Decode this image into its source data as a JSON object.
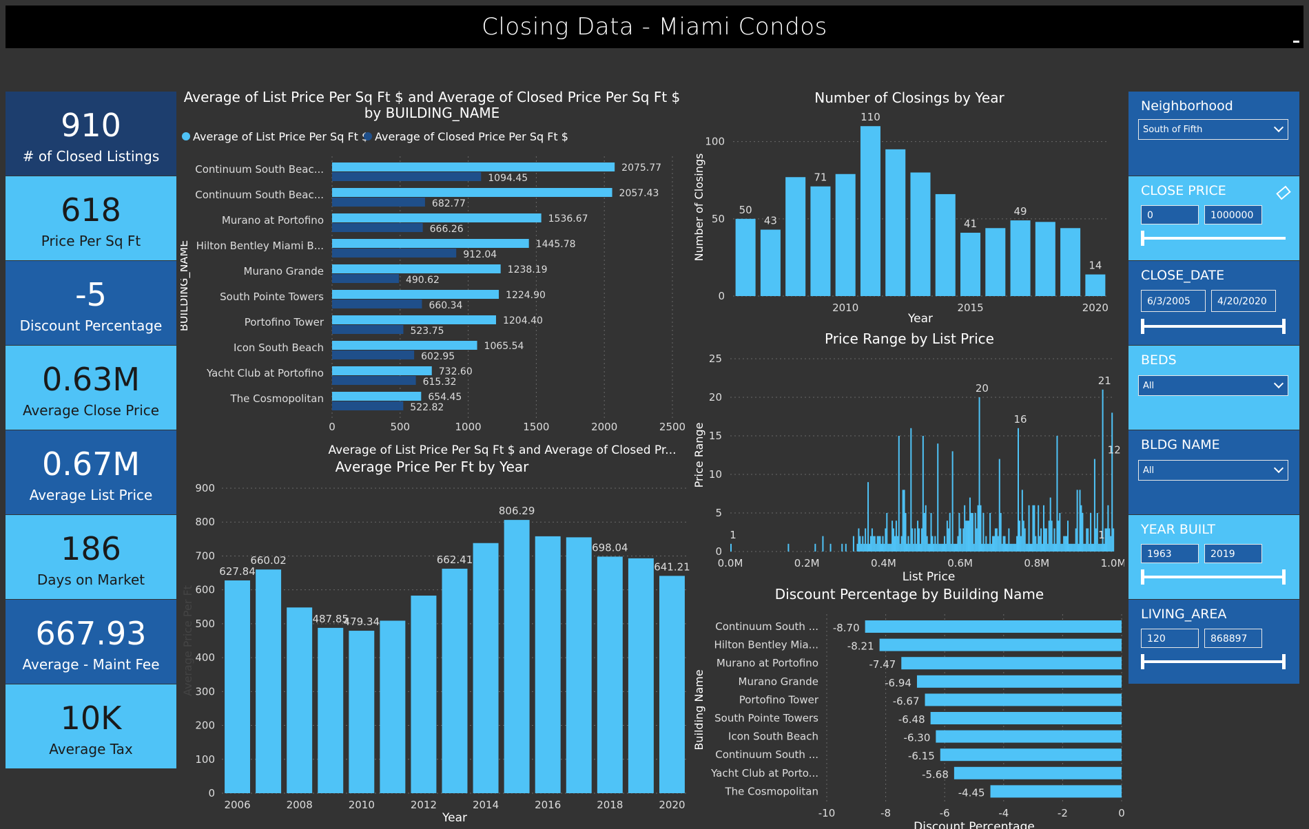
{
  "title": "Closing Data - Miami Condos",
  "kpis": [
    {
      "value": "910",
      "label": "# of Closed Listings"
    },
    {
      "value": "618",
      "label": "Price Per Sq Ft"
    },
    {
      "value": "-5",
      "label": "Discount Percentage"
    },
    {
      "value": "0.63M",
      "label": "Average Close Price"
    },
    {
      "value": "0.67M",
      "label": "Average List Price"
    },
    {
      "value": "186",
      "label": "Days on Market"
    },
    {
      "value": "667.93",
      "label": "Average - Maint Fee"
    },
    {
      "value": "10K",
      "label": "Average Tax"
    }
  ],
  "colors": {
    "light": "#4fc3f7",
    "dark": "#1f4f8a",
    "navy": "#1d3e6e",
    "background": "#333333"
  },
  "filters": {
    "neighborhood": {
      "title": "Neighborhood",
      "value": "South of Fifth"
    },
    "close_price": {
      "title": "CLOSE PRICE",
      "min": "0",
      "max": "1000000"
    },
    "close_date": {
      "title": "CLOSE_DATE",
      "min": "6/3/2005",
      "max": "4/20/2020"
    },
    "beds": {
      "title": "BEDS",
      "value": "All"
    },
    "bldg_name": {
      "title": "BLDG NAME",
      "value": "All"
    },
    "year_built": {
      "title": "YEAR BUILT",
      "min": "1963",
      "max": "2019"
    },
    "living_area": {
      "title": "LIVING_AREA",
      "min": "120",
      "max": "868897"
    }
  },
  "chart_data": [
    {
      "type": "bar",
      "orientation": "horizontal",
      "title": "Average of List Price Per Sq Ft $ and Average of Closed Price Per Sq Ft $ by BUILDING_NAME",
      "ylabel": "BUILDING_NAME",
      "xlabel": "Average of List Price Per Sq Ft $ and Average of Closed Pr...",
      "xlim": [
        0,
        2500
      ],
      "xticks": [
        "0",
        "500",
        "1000",
        "1500",
        "2000",
        "2500"
      ],
      "categories": [
        "Continuum South Beac...",
        "Continuum South Beac...",
        "Murano at Portofino",
        "Hilton Bentley Miami B...",
        "Murano Grande",
        "South Pointe Towers",
        "Portofino Tower",
        "Icon South Beach",
        "Yacht Club at Portofino",
        "The Cosmopolitan"
      ],
      "series": [
        {
          "name": "Average of List Price Per Sq Ft $",
          "values": [
            2075.77,
            2057.43,
            1536.67,
            1445.78,
            1238.19,
            1224.9,
            1204.4,
            1065.54,
            732.6,
            654.45
          ],
          "labels": [
            "2075.77",
            "2057.43",
            "1536.67",
            "1445.78",
            "1238.19",
            "1224.90",
            "1204.40",
            "1065.54",
            "732.60",
            "654.45"
          ]
        },
        {
          "name": "Average of Closed Price Per Sq Ft $",
          "values": [
            1094.45,
            682.77,
            666.26,
            912.04,
            490.62,
            660.34,
            523.75,
            602.95,
            615.32,
            522.82
          ],
          "labels": [
            "1094.45",
            "682.77",
            "666.26",
            "912.04",
            "490.62",
            "660.34",
            "523.75",
            "602.95",
            "615.32",
            "522.82"
          ]
        }
      ],
      "legend": "top-left"
    },
    {
      "type": "bar",
      "title": "Average Price Per Ft by Year",
      "xlabel": "Year",
      "ylabel": "Average Price Per Ft",
      "ylim": [
        0,
        900
      ],
      "yticks": [
        "0",
        "100",
        "200",
        "300",
        "400",
        "500",
        "600",
        "700",
        "800",
        "900"
      ],
      "categories": [
        "2006",
        "2007",
        "2008",
        "2009",
        "2010",
        "2011",
        "2012",
        "2013",
        "2014",
        "2015",
        "2016",
        "2017",
        "2018",
        "2019",
        "2020"
      ],
      "xtick_labels": [
        "2006",
        "",
        "2008",
        "",
        "2010",
        "",
        "2012",
        "",
        "2014",
        "",
        "2016",
        "",
        "2018",
        "",
        "2020"
      ],
      "values": [
        627.84,
        660.02,
        548,
        487.85,
        479.34,
        509,
        583,
        662.41,
        738,
        806.29,
        758,
        755,
        698.04,
        693,
        641.21
      ],
      "labels": [
        "627.84",
        "660.02",
        "",
        "487.85",
        "479.34",
        "",
        "",
        "662.41",
        "",
        "806.29",
        "",
        "",
        "698.04",
        "",
        "641.21"
      ]
    },
    {
      "type": "bar",
      "title": "Number of Closings by Year",
      "xlabel": "Year",
      "ylabel": "Number of Closings",
      "ylim": [
        0,
        115
      ],
      "yticks": [
        "0",
        "50",
        "100"
      ],
      "categories": [
        "2006",
        "2007",
        "2008",
        "2009",
        "2010",
        "2011",
        "2012",
        "2013",
        "2014",
        "2015",
        "2016",
        "2017",
        "2018",
        "2019",
        "2020"
      ],
      "xtick_labels": [
        "",
        "",
        "",
        "",
        "2010",
        "",
        "",
        "",
        "",
        "2015",
        "",
        "",
        "",
        "",
        "2020"
      ],
      "values": [
        50,
        43,
        77,
        71,
        79,
        110,
        95,
        80,
        66,
        41,
        44,
        49,
        48,
        44,
        14
      ],
      "labels": [
        "50",
        "43",
        "",
        "71",
        "",
        "110",
        "",
        "",
        "",
        "41",
        "",
        "49",
        "",
        "",
        "14"
      ]
    },
    {
      "type": "bar",
      "title": "Price Range by List Price",
      "xlabel": "List Price",
      "ylabel": "Price Range",
      "ylim": [
        0,
        25
      ],
      "yticks": [
        "0",
        "5",
        "10",
        "15",
        "20",
        "25"
      ],
      "xlim": [
        0,
        1000000
      ],
      "xticks": [
        "0.0M",
        "0.2M",
        "0.4M",
        "0.6M",
        "0.8M",
        "1.0M"
      ],
      "annotations": [
        "1",
        "20",
        "16",
        "21",
        "12",
        "1"
      ]
    },
    {
      "type": "bar",
      "orientation": "horizontal",
      "title": "Discount Percentage by Building Name",
      "xlabel": "Discount Percentage",
      "ylabel": "Building Name",
      "xlim": [
        -10,
        0
      ],
      "xticks": [
        "-10",
        "-8",
        "-6",
        "-4",
        "-2",
        "0"
      ],
      "categories": [
        "Continuum South ...",
        "Hilton Bentley Mia...",
        "Murano at Portofino",
        "Murano Grande",
        "Portofino Tower",
        "South Pointe Towers",
        "Icon South Beach",
        "Continuum South ...",
        "Yacht Club at Porto...",
        "The Cosmopolitan"
      ],
      "values": [
        -8.7,
        -8.21,
        -7.47,
        -6.94,
        -6.67,
        -6.48,
        -6.3,
        -6.15,
        -5.68,
        -4.45
      ],
      "labels": [
        "-8.70",
        "-8.21",
        "-7.47",
        "-6.94",
        "-6.67",
        "-6.48",
        "-6.30",
        "-6.15",
        "-5.68",
        "-4.45"
      ]
    }
  ]
}
